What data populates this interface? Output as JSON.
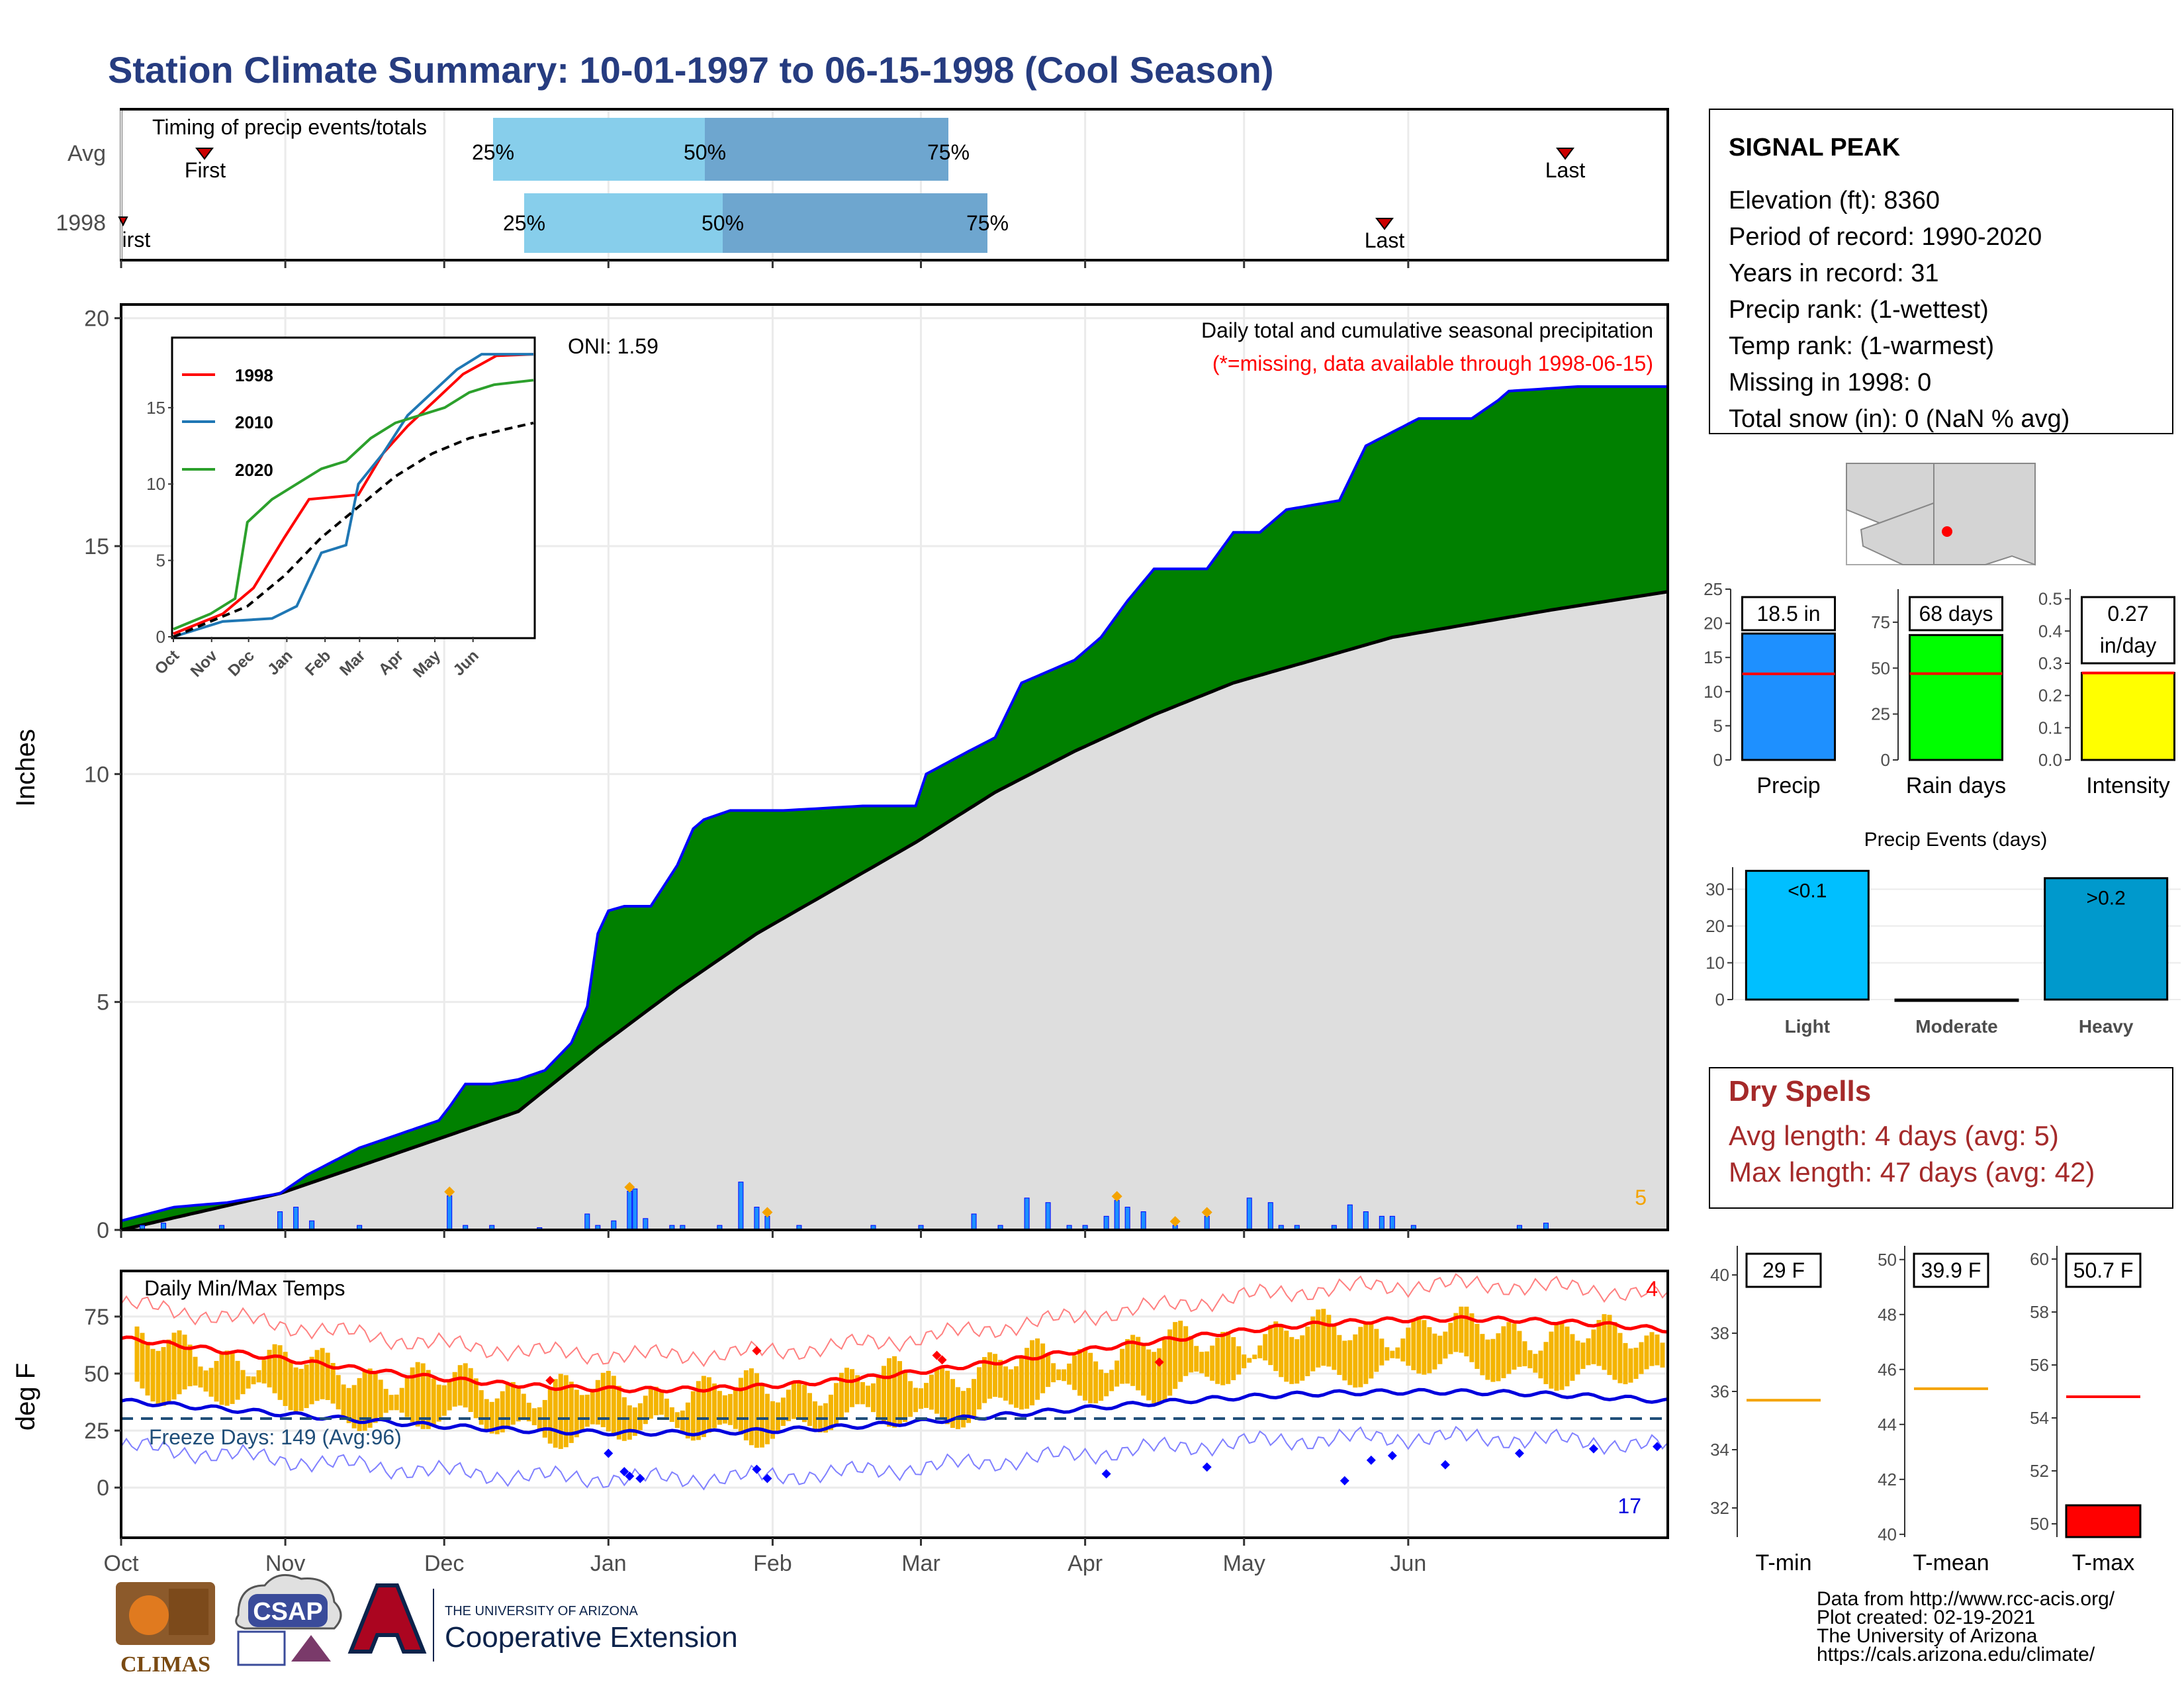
{
  "title": "Station Climate Summary: 10-01-1997 to 06-15-1998 (Cool Season)",
  "colors": {
    "title": "#263c80",
    "green": "#008000",
    "brown": "#7b4a12",
    "gray": "#dedede",
    "blue": "#0000ff",
    "orange": "#f4a300",
    "red": "#ff0000",
    "precip_bar": "#1e90ff",
    "raindays_bar": "#00ff00",
    "intensity_bar": "#ffff00",
    "light_bar": "#00bfff",
    "heavy_bar": "#0099cc",
    "dry": "#a52a2a",
    "timing_light": "#87ceeb",
    "timing_dark": "#6ea6cf"
  },
  "timing_panel": {
    "title": "Timing of precip events/totals",
    "rows": [
      {
        "label": "Avg",
        "p25": "25%",
        "p50": "50%",
        "p75": "75%",
        "first": "First",
        "last": "Last"
      },
      {
        "label": "1998",
        "p25": "25%",
        "p50": "50%",
        "p75": "75%",
        "first": "First",
        "last": "Last"
      }
    ]
  },
  "precip_panel": {
    "ylabel": "Inches",
    "oni": "ONI: 1.59",
    "subtitle": "Daily total and cumulative seasonal precipitation",
    "missing_note": "(*=missing, data available through 1998-06-15)",
    "count_label": "5",
    "yticks": [
      "0",
      "5",
      "10",
      "15",
      "20"
    ]
  },
  "inset": {
    "legend": [
      "1998",
      "2010",
      "2020"
    ],
    "yticks": [
      "0",
      "5",
      "10",
      "15"
    ],
    "xticks": [
      "Oct",
      "Nov",
      "Dec",
      "Jan",
      "Feb",
      "Mar",
      "Apr",
      "May",
      "Jun"
    ]
  },
  "temp_panel": {
    "ylabel": "deg F",
    "title": "Daily Min/Max Temps",
    "freeze": "Freeze Days: 149 (Avg:96)",
    "count_high": "4",
    "count_low": "17",
    "yticks": [
      "0",
      "25",
      "50",
      "75"
    ]
  },
  "xticks": [
    "Oct",
    "Nov",
    "Dec",
    "Jan",
    "Feb",
    "Mar",
    "Apr",
    "May",
    "Jun"
  ],
  "info_box": {
    "station": "SIGNAL PEAK",
    "lines": [
      "Elevation (ft): 8360",
      "Period of record: 1990-2020",
      "Years in record: 31",
      "Precip rank:  (1-wettest)",
      "Temp rank:  (1-warmest)",
      "Missing in 1998: 0",
      "Total snow (in): 0 (NaN % avg)"
    ]
  },
  "mini_bars": [
    {
      "label": "Precip",
      "value_label": "18.5 in",
      "yticks": [
        "0",
        "5",
        "10",
        "15",
        "20",
        "25"
      ]
    },
    {
      "label": "Rain days",
      "value_label": "68 days",
      "yticks": [
        "0",
        "25",
        "50",
        "75"
      ]
    },
    {
      "label": "Intensity",
      "value_label": "0.27",
      "value_label2": "in/day",
      "yticks": [
        "0.0",
        "0.1",
        "0.2",
        "0.3",
        "0.4",
        "0.5"
      ]
    }
  ],
  "events": {
    "title": "Precip Events (days)",
    "categories": [
      "Light",
      "Moderate",
      "Heavy"
    ],
    "labels": [
      "<0.1",
      "",
      ">0.2"
    ],
    "yticks": [
      "0",
      "10",
      "20",
      "30"
    ]
  },
  "dry_spells": {
    "title": "Dry Spells",
    "avg": "Avg length: 4 days (avg: 5)",
    "max": "Max length: 47 days (avg: 42)"
  },
  "temp_bars": [
    {
      "label": "T-min",
      "value_label": "29 F",
      "yticks": [
        "32",
        "34",
        "36",
        "38",
        "40"
      ]
    },
    {
      "label": "T-mean",
      "value_label": "39.9 F",
      "yticks": [
        "40",
        "42",
        "44",
        "46",
        "48",
        "50"
      ]
    },
    {
      "label": "T-max",
      "value_label": "50.7 F",
      "yticks": [
        "50",
        "52",
        "54",
        "56",
        "58",
        "60"
      ]
    }
  ],
  "credits": [
    "Data from http://www.rcc-acis.org/",
    "Plot created: 02-19-2021",
    "The University of Arizona",
    "https://cals.arizona.edu/climate/"
  ],
  "logos": {
    "climas": "CLIMAS",
    "csap": "CSAP",
    "ua_small": "THE UNIVERSITY OF ARIZONA",
    "ua_big": "Cooperative Extension"
  },
  "chart_data": {
    "type": "area",
    "x_range": [
      "1997-10-01",
      "1998-06-15"
    ],
    "cumulative_1998": [
      [
        0,
        0.2
      ],
      [
        10,
        0.5
      ],
      [
        20,
        0.6
      ],
      [
        30,
        0.8
      ],
      [
        35,
        1.2
      ],
      [
        40,
        1.5
      ],
      [
        45,
        1.8
      ],
      [
        50,
        2.0
      ],
      [
        55,
        2.2
      ],
      [
        60,
        2.4
      ],
      [
        62,
        2.7
      ],
      [
        65,
        3.2
      ],
      [
        70,
        3.2
      ],
      [
        75,
        3.3
      ],
      [
        80,
        3.5
      ],
      [
        85,
        4.1
      ],
      [
        88,
        4.9
      ],
      [
        90,
        6.5
      ],
      [
        92,
        7.0
      ],
      [
        95,
        7.1
      ],
      [
        100,
        7.1
      ],
      [
        105,
        8.0
      ],
      [
        108,
        8.8
      ],
      [
        110,
        9.0
      ],
      [
        115,
        9.2
      ],
      [
        125,
        9.2
      ],
      [
        140,
        9.3
      ],
      [
        150,
        9.3
      ],
      [
        152,
        10.0
      ],
      [
        160,
        10.5
      ],
      [
        165,
        10.8
      ],
      [
        170,
        12.0
      ],
      [
        180,
        12.5
      ],
      [
        185,
        13.0
      ],
      [
        190,
        13.8
      ],
      [
        195,
        14.5
      ],
      [
        205,
        14.5
      ],
      [
        210,
        15.3
      ],
      [
        215,
        15.3
      ],
      [
        220,
        15.8
      ],
      [
        230,
        16.0
      ],
      [
        235,
        17.2
      ],
      [
        240,
        17.5
      ],
      [
        245,
        17.8
      ],
      [
        255,
        17.8
      ],
      [
        260,
        18.2
      ],
      [
        262,
        18.4
      ],
      [
        275,
        18.5
      ],
      [
        292,
        18.5
      ]
    ],
    "cumulative_avg_end": 14.0,
    "inset_series": [
      {
        "name": "1998",
        "color": "#ff0000",
        "points": [
          [
            0,
            0.2
          ],
          [
            40,
            1.5
          ],
          [
            65,
            3.2
          ],
          [
            90,
            6.5
          ],
          [
            110,
            9.0
          ],
          [
            150,
            9.3
          ],
          [
            170,
            12.0
          ],
          [
            190,
            13.8
          ],
          [
            210,
            15.3
          ],
          [
            235,
            17.2
          ],
          [
            262,
            18.4
          ],
          [
            292,
            18.5
          ]
        ]
      },
      {
        "name": "2010",
        "color": "#1f77b4",
        "points": [
          [
            0,
            0
          ],
          [
            40,
            1.0
          ],
          [
            80,
            1.2
          ],
          [
            100,
            2.0
          ],
          [
            120,
            5.5
          ],
          [
            140,
            6.0
          ],
          [
            150,
            10.0
          ],
          [
            170,
            12.0
          ],
          [
            190,
            14.5
          ],
          [
            210,
            16.0
          ],
          [
            230,
            17.5
          ],
          [
            250,
            18.5
          ],
          [
            292,
            18.5
          ]
        ]
      },
      {
        "name": "2020",
        "color": "#2ca02c",
        "points": [
          [
            0,
            0.5
          ],
          [
            30,
            1.5
          ],
          [
            50,
            2.5
          ],
          [
            60,
            7.5
          ],
          [
            80,
            9.0
          ],
          [
            100,
            10.0
          ],
          [
            120,
            11.0
          ],
          [
            140,
            11.5
          ],
          [
            160,
            13.0
          ],
          [
            180,
            14.0
          ],
          [
            200,
            14.5
          ],
          [
            220,
            15.0
          ],
          [
            240,
            16.0
          ],
          [
            260,
            16.5
          ],
          [
            292,
            16.8
          ]
        ]
      },
      {
        "name": "avg",
        "color": "#000000",
        "points": [
          [
            0,
            0
          ],
          [
            60,
            2.0
          ],
          [
            90,
            4.0
          ],
          [
            120,
            6.5
          ],
          [
            150,
            8.5
          ],
          [
            180,
            10.5
          ],
          [
            210,
            12.0
          ],
          [
            240,
            13.0
          ],
          [
            270,
            13.6
          ],
          [
            292,
            14.0
          ]
        ]
      }
    ],
    "precip_totals": {
      "season": 18.5,
      "avg": 12.6
    },
    "rain_days": {
      "value": 68,
      "avg": 47
    },
    "intensity": {
      "value": 0.27,
      "avg": 0.27
    },
    "events": [
      35,
      0,
      33
    ],
    "temp_summary": {
      "tmin": 29,
      "tmin_avg": 35.7,
      "tmean": 39.9,
      "tmean_avg": 45.3,
      "tmax": 50.7,
      "tmax_avg": 54.8
    }
  }
}
